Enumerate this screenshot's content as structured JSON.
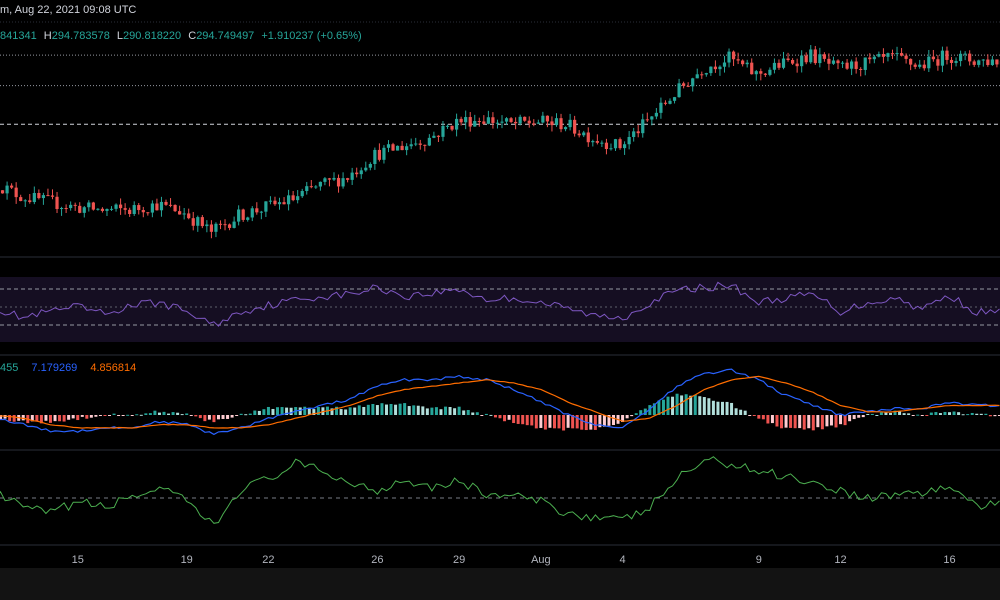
{
  "header": {
    "title_fragment": "m, Aug 22, 2021 09:08 UTC",
    "ohlc": {
      "o": "841341",
      "h_label": "H",
      "h": "294.783578",
      "l_label": "L",
      "l": "290.818220",
      "c_label": "C",
      "c": "294.749497",
      "change": "+1.910237 (+0.65%)"
    }
  },
  "colors": {
    "up": "#26a69a",
    "down": "#ef5350",
    "rsi": "#7e57c2",
    "macd": "#2962ff",
    "signal": "#ff6d00",
    "hist_up": "#26a69a",
    "hist_up_light": "#b2dfdb",
    "hist_down": "#ef5350",
    "hist_down_light": "#ffcdd2",
    "cmf": "#4caf50",
    "grid_dotted": "#9598a1",
    "panel_sep": "#2a2e39"
  },
  "macd_legend": {
    "hist": "455",
    "macd": "7.179269",
    "signal": "4.856814"
  },
  "x_axis": {
    "ticks": [
      "15",
      "19",
      "22",
      "26",
      "29",
      "Aug",
      "4",
      "9",
      "12",
      "16"
    ]
  },
  "chart_data": [
    {
      "type": "candlestick",
      "title": "",
      "x_start": "2021-07-12",
      "x_end": "2021-08-17",
      "close_points": [
        [
          "2021-07-12",
          242
        ],
        [
          "2021-07-13",
          237
        ],
        [
          "2021-07-14",
          235
        ],
        [
          "2021-07-15",
          233
        ],
        [
          "2021-07-16",
          232
        ],
        [
          "2021-07-17",
          232
        ],
        [
          "2021-07-18",
          234
        ],
        [
          "2021-07-19",
          231
        ],
        [
          "2021-07-20",
          224
        ],
        [
          "2021-07-21",
          230
        ],
        [
          "2021-07-22",
          233
        ],
        [
          "2021-07-23",
          236
        ],
        [
          "2021-07-24",
          241
        ],
        [
          "2021-07-25",
          244
        ],
        [
          "2021-07-26",
          252
        ],
        [
          "2021-07-27",
          255
        ],
        [
          "2021-07-28",
          258
        ],
        [
          "2021-07-29",
          264
        ],
        [
          "2021-07-30",
          265
        ],
        [
          "2021-07-31",
          263
        ],
        [
          "2021-08-01",
          264
        ],
        [
          "2021-08-02",
          263
        ],
        [
          "2021-08-03",
          258
        ],
        [
          "2021-08-04",
          255
        ],
        [
          "2021-08-05",
          264
        ],
        [
          "2021-08-06",
          274
        ],
        [
          "2021-08-07",
          283
        ],
        [
          "2021-08-08",
          287
        ],
        [
          "2021-08-09",
          281
        ],
        [
          "2021-08-10",
          285
        ],
        [
          "2021-08-11",
          288
        ],
        [
          "2021-08-12",
          283
        ],
        [
          "2021-08-13",
          285
        ],
        [
          "2021-08-14",
          287
        ],
        [
          "2021-08-15",
          284
        ],
        [
          "2021-08-16",
          288
        ],
        [
          "2021-08-17",
          286
        ]
      ],
      "reference_lines": [
        288,
        277,
        263
      ]
    },
    {
      "type": "line",
      "name": "",
      "ylim": [
        0,
        100
      ],
      "bands": [
        70,
        50,
        30
      ],
      "points": [
        [
          "2021-07-12",
          48
        ],
        [
          "2021-07-13",
          38
        ],
        [
          "2021-07-14",
          45
        ],
        [
          "2021-07-15",
          50
        ],
        [
          "2021-07-16",
          42
        ],
        [
          "2021-07-17",
          52
        ],
        [
          "2021-07-18",
          55
        ],
        [
          "2021-07-19",
          45
        ],
        [
          "2021-07-20",
          30
        ],
        [
          "2021-07-21",
          45
        ],
        [
          "2021-07-22",
          52
        ],
        [
          "2021-07-23",
          58
        ],
        [
          "2021-07-24",
          62
        ],
        [
          "2021-07-25",
          64
        ],
        [
          "2021-07-26",
          72
        ],
        [
          "2021-07-27",
          62
        ],
        [
          "2021-07-28",
          65
        ],
        [
          "2021-07-29",
          70
        ],
        [
          "2021-07-30",
          58
        ],
        [
          "2021-07-31",
          60
        ],
        [
          "2021-08-01",
          55
        ],
        [
          "2021-08-02",
          48
        ],
        [
          "2021-08-03",
          40
        ],
        [
          "2021-08-04",
          38
        ],
        [
          "2021-08-05",
          55
        ],
        [
          "2021-08-06",
          68
        ],
        [
          "2021-08-07",
          72
        ],
        [
          "2021-08-08",
          74
        ],
        [
          "2021-08-09",
          55
        ],
        [
          "2021-08-10",
          60
        ],
        [
          "2021-08-11",
          64
        ],
        [
          "2021-08-12",
          45
        ],
        [
          "2021-08-13",
          55
        ],
        [
          "2021-08-14",
          60
        ],
        [
          "2021-08-15",
          48
        ],
        [
          "2021-08-16",
          63
        ],
        [
          "2021-08-17",
          44
        ]
      ]
    },
    {
      "type": "line+bar",
      "name": "",
      "series": [
        {
          "name": "macd",
          "points": [
            [
              "2021-07-12",
              -1
            ],
            [
              "2021-07-13",
              -3
            ],
            [
              "2021-07-14",
              -5
            ],
            [
              "2021-07-15",
              -5
            ],
            [
              "2021-07-16",
              -4
            ],
            [
              "2021-07-17",
              -4
            ],
            [
              "2021-07-18",
              -2
            ],
            [
              "2021-07-19",
              -3
            ],
            [
              "2021-07-20",
              -6
            ],
            [
              "2021-07-21",
              -4
            ],
            [
              "2021-07-22",
              -1
            ],
            [
              "2021-07-23",
              1
            ],
            [
              "2021-07-24",
              3
            ],
            [
              "2021-07-25",
              5
            ],
            [
              "2021-07-26",
              9
            ],
            [
              "2021-07-27",
              11
            ],
            [
              "2021-07-28",
              11
            ],
            [
              "2021-07-29",
              12
            ],
            [
              "2021-07-30",
              11
            ],
            [
              "2021-07-31",
              8
            ],
            [
              "2021-08-01",
              4
            ],
            [
              "2021-08-02",
              0
            ],
            [
              "2021-08-03",
              -3
            ],
            [
              "2021-08-04",
              -4
            ],
            [
              "2021-08-05",
              2
            ],
            [
              "2021-08-06",
              9
            ],
            [
              "2021-08-07",
              13
            ],
            [
              "2021-08-08",
              14
            ],
            [
              "2021-08-09",
              11
            ],
            [
              "2021-08-10",
              6
            ],
            [
              "2021-08-11",
              3
            ],
            [
              "2021-08-12",
              0
            ],
            [
              "2021-08-13",
              1
            ],
            [
              "2021-08-14",
              2
            ],
            [
              "2021-08-15",
              2
            ],
            [
              "2021-08-16",
              4
            ],
            [
              "2021-08-17",
              3
            ]
          ]
        },
        {
          "name": "signal",
          "points": [
            [
              "2021-07-12",
              0
            ],
            [
              "2021-07-13",
              -1
            ],
            [
              "2021-07-14",
              -3
            ],
            [
              "2021-07-15",
              -4
            ],
            [
              "2021-07-16",
              -4
            ],
            [
              "2021-07-17",
              -4
            ],
            [
              "2021-07-18",
              -3
            ],
            [
              "2021-07-19",
              -3
            ],
            [
              "2021-07-20",
              -4
            ],
            [
              "2021-07-21",
              -4
            ],
            [
              "2021-07-22",
              -3
            ],
            [
              "2021-07-23",
              -1
            ],
            [
              "2021-07-24",
              1
            ],
            [
              "2021-07-25",
              3
            ],
            [
              "2021-07-26",
              6
            ],
            [
              "2021-07-27",
              8
            ],
            [
              "2021-07-28",
              9
            ],
            [
              "2021-07-29",
              10
            ],
            [
              "2021-07-30",
              11
            ],
            [
              "2021-07-31",
              10
            ],
            [
              "2021-08-01",
              8
            ],
            [
              "2021-08-02",
              4
            ],
            [
              "2021-08-03",
              1
            ],
            [
              "2021-08-04",
              -2
            ],
            [
              "2021-08-05",
              -1
            ],
            [
              "2021-08-06",
              3
            ],
            [
              "2021-08-07",
              8
            ],
            [
              "2021-08-08",
              11
            ],
            [
              "2021-08-09",
              12
            ],
            [
              "2021-08-10",
              10
            ],
            [
              "2021-08-11",
              7
            ],
            [
              "2021-08-12",
              3
            ],
            [
              "2021-08-13",
              1
            ],
            [
              "2021-08-14",
              1
            ],
            [
              "2021-08-15",
              2
            ],
            [
              "2021-08-16",
              3
            ],
            [
              "2021-08-17",
              3
            ]
          ]
        }
      ]
    },
    {
      "type": "line",
      "name": "",
      "reference_line": 0,
      "points": [
        [
          "2021-07-12",
          0.02
        ],
        [
          "2021-07-13",
          -0.05
        ],
        [
          "2021-07-14",
          -0.08
        ],
        [
          "2021-07-15",
          -0.02
        ],
        [
          "2021-07-16",
          -0.05
        ],
        [
          "2021-07-17",
          0.01
        ],
        [
          "2021-07-18",
          0.05
        ],
        [
          "2021-07-19",
          -0.02
        ],
        [
          "2021-07-20",
          -0.15
        ],
        [
          "2021-07-21",
          0.05
        ],
        [
          "2021-07-22",
          0.1
        ],
        [
          "2021-07-23",
          0.18
        ],
        [
          "2021-07-24",
          0.14
        ],
        [
          "2021-07-25",
          0.08
        ],
        [
          "2021-07-26",
          0.04
        ],
        [
          "2021-07-27",
          0.1
        ],
        [
          "2021-07-28",
          0.06
        ],
        [
          "2021-07-29",
          0.09
        ],
        [
          "2021-07-30",
          0.02
        ],
        [
          "2021-07-31",
          0.01
        ],
        [
          "2021-08-01",
          -0.02
        ],
        [
          "2021-08-02",
          -0.08
        ],
        [
          "2021-08-03",
          -0.1
        ],
        [
          "2021-08-04",
          -0.12
        ],
        [
          "2021-08-05",
          -0.05
        ],
        [
          "2021-08-06",
          0.1
        ],
        [
          "2021-08-07",
          0.2
        ],
        [
          "2021-08-08",
          0.18
        ],
        [
          "2021-08-09",
          0.14
        ],
        [
          "2021-08-10",
          0.12
        ],
        [
          "2021-08-11",
          0.08
        ],
        [
          "2021-08-12",
          0.04
        ],
        [
          "2021-08-13",
          0.0
        ],
        [
          "2021-08-14",
          0.02
        ],
        [
          "2021-08-15",
          0.03
        ],
        [
          "2021-08-16",
          0.06
        ],
        [
          "2021-08-17",
          -0.04
        ]
      ]
    }
  ]
}
